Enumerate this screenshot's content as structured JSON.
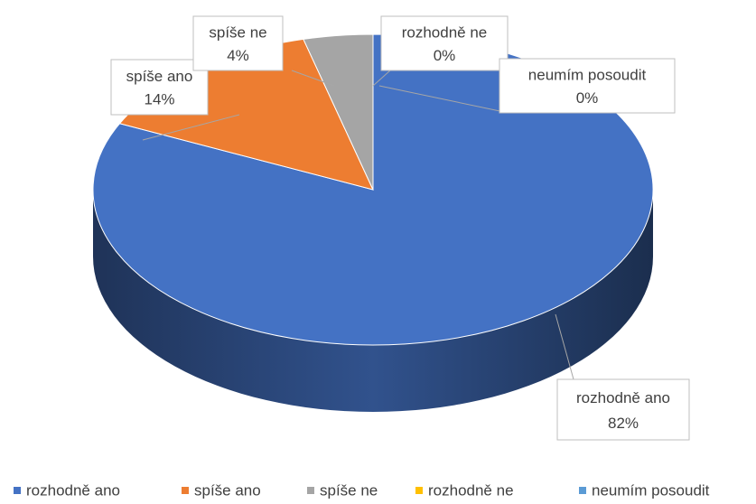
{
  "chart_data": {
    "type": "pie3d",
    "categories": [
      "rozhodně ano",
      "spíše ano",
      "spíše ne",
      "rozhodně ne",
      "neumím posoudit"
    ],
    "values": [
      82,
      14,
      4,
      0,
      0
    ],
    "value_labels": [
      "82%",
      "14%",
      "4%",
      "0%",
      "0%"
    ],
    "colors": [
      "#4472c4",
      "#ed7d31",
      "#a5a5a5",
      "#ffc000",
      "#5b9bd5"
    ],
    "legend": "bottom"
  }
}
